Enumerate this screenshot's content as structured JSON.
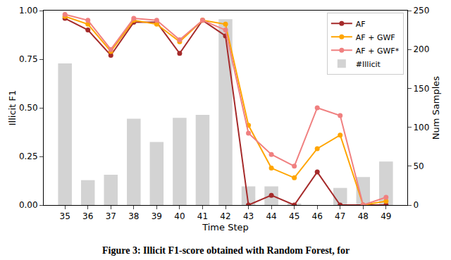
{
  "chart_data": {
    "type": "line",
    "caption": "Figure 3: Illicit F1-score obtained with Random Forest, for",
    "x_label": "Time Step",
    "y_label": "Illicit F1",
    "y2_label": "Num Samples",
    "categories": [
      "35",
      "36",
      "37",
      "38",
      "39",
      "40",
      "41",
      "42",
      "43",
      "44",
      "45",
      "46",
      "47",
      "48",
      "49"
    ],
    "series": [
      {
        "name": "AF",
        "color": "#a52a2a",
        "marker": "circle",
        "values": [
          0.96,
          0.9,
          0.77,
          0.94,
          0.94,
          0.78,
          0.95,
          0.87,
          0.0,
          0.05,
          0.0,
          0.17,
          0.0,
          0.0,
          0.0
        ]
      },
      {
        "name": "AF + GWF",
        "color": "#ffa500",
        "marker": "circle",
        "values": [
          0.97,
          0.93,
          0.79,
          0.95,
          0.93,
          0.84,
          0.95,
          0.93,
          0.41,
          0.19,
          0.14,
          0.29,
          0.36,
          0.0,
          0.02
        ]
      },
      {
        "name": "AF + GWF*",
        "color": "#f08080",
        "marker": "circle",
        "values": [
          0.98,
          0.95,
          0.8,
          0.96,
          0.95,
          0.85,
          0.95,
          0.9,
          0.37,
          0.26,
          0.2,
          0.5,
          0.46,
          0.0,
          0.04
        ]
      },
      {
        "name": "#Illicit",
        "type": "bar",
        "axis": "y2",
        "color": "#d3d3d3",
        "values": [
          182,
          32,
          39,
          111,
          81,
          112,
          116,
          239,
          24,
          24,
          2,
          0,
          22,
          36,
          56
        ]
      }
    ],
    "ylim": [
      0,
      1
    ],
    "yticks": [
      {
        "value": 0,
        "label": "0.00"
      },
      {
        "value": 0.25,
        "label": "0.25"
      },
      {
        "value": 0.5,
        "label": "0.50"
      },
      {
        "value": 0.75,
        "label": "0.75"
      },
      {
        "value": 1,
        "label": "1.00"
      }
    ],
    "y2lim": [
      0,
      250
    ],
    "y2ticks": [
      0,
      50,
      100,
      150,
      200,
      250
    ],
    "legend": "upper right",
    "grid": false
  }
}
